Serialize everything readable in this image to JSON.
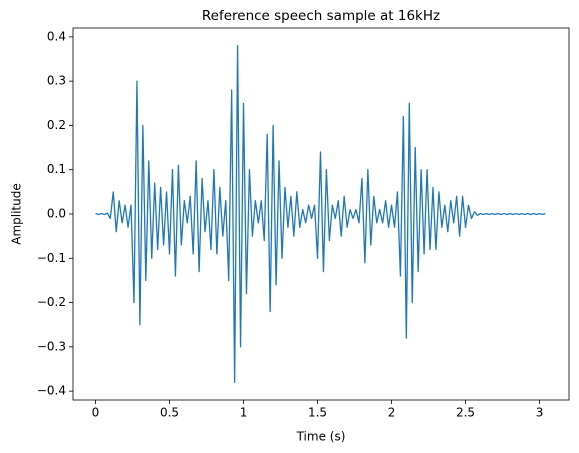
{
  "chart_data": {
    "type": "line",
    "title": "Reference speech sample at 16kHz",
    "xlabel": "Time (s)",
    "ylabel": "Amplitude",
    "color": "#1f77b4",
    "x": [
      0,
      0.02,
      0.04,
      0.06,
      0.08,
      0.1,
      0.12,
      0.14,
      0.16,
      0.18,
      0.2,
      0.22,
      0.24,
      0.26,
      0.28,
      0.3,
      0.32,
      0.34,
      0.36,
      0.38,
      0.4,
      0.42,
      0.44,
      0.46,
      0.48,
      0.5,
      0.52,
      0.54,
      0.56,
      0.58,
      0.6,
      0.62,
      0.64,
      0.66,
      0.68,
      0.7,
      0.72,
      0.74,
      0.76,
      0.78,
      0.8,
      0.82,
      0.84,
      0.86,
      0.88,
      0.9,
      0.92,
      0.94,
      0.96,
      0.98,
      1,
      1.02,
      1.04,
      1.06,
      1.08,
      1.1,
      1.12,
      1.14,
      1.16,
      1.18,
      1.2,
      1.22,
      1.24,
      1.26,
      1.28,
      1.3,
      1.32,
      1.34,
      1.36,
      1.38,
      1.4,
      1.42,
      1.44,
      1.46,
      1.48,
      1.5,
      1.52,
      1.54,
      1.56,
      1.58,
      1.6,
      1.62,
      1.64,
      1.66,
      1.68,
      1.7,
      1.72,
      1.74,
      1.76,
      1.78,
      1.8,
      1.82,
      1.84,
      1.86,
      1.88,
      1.9,
      1.92,
      1.94,
      1.96,
      1.98,
      2,
      2.02,
      2.04,
      2.06,
      2.08,
      2.1,
      2.12,
      2.14,
      2.16,
      2.18,
      2.2,
      2.22,
      2.24,
      2.26,
      2.28,
      2.3,
      2.32,
      2.34,
      2.36,
      2.38,
      2.4,
      2.42,
      2.44,
      2.46,
      2.48,
      2.5,
      2.52,
      2.54,
      2.56,
      2.58,
      2.6,
      2.62,
      2.64,
      2.66,
      2.68,
      2.7,
      2.72,
      2.74,
      2.76,
      2.78,
      2.8,
      2.82,
      2.84,
      2.86,
      2.88,
      2.9,
      2.92,
      2.94,
      2.96,
      2.98,
      3,
      3.02,
      3.04
    ],
    "values": [
      0.001,
      -0.001,
      0.001,
      -0.001,
      0.002,
      -0.01,
      0.05,
      -0.04,
      0.03,
      -0.02,
      0.02,
      -0.03,
      0.02,
      -0.2,
      0.3,
      -0.25,
      0.2,
      -0.15,
      0.12,
      -0.1,
      0.07,
      -0.08,
      0.06,
      -0.07,
      0.05,
      -0.09,
      0.1,
      -0.14,
      0.11,
      -0.07,
      0.03,
      -0.02,
      0.04,
      -0.09,
      0.12,
      -0.13,
      0.08,
      -0.04,
      0.03,
      -0.08,
      0.1,
      -0.09,
      0.06,
      -0.05,
      0.03,
      -0.15,
      0.28,
      -0.38,
      0.38,
      -0.3,
      0.25,
      -0.18,
      0.1,
      -0.05,
      0.03,
      -0.02,
      0.03,
      -0.06,
      0.18,
      -0.22,
      0.2,
      -0.16,
      0.12,
      -0.1,
      0.06,
      -0.03,
      0.04,
      -0.05,
      0.05,
      -0.03,
      0.01,
      -0.02,
      0.02,
      -0.01,
      0.02,
      -0.1,
      0.14,
      -0.13,
      0.1,
      -0.06,
      0.02,
      -0.01,
      0.03,
      -0.05,
      0.04,
      -0.03,
      0.01,
      -0.01,
      0.01,
      -0.02,
      0.08,
      -0.11,
      0.1,
      -0.07,
      0.04,
      -0.02,
      0.01,
      -0.02,
      0.03,
      -0.03,
      0.02,
      -0.03,
      0.05,
      -0.14,
      0.22,
      -0.28,
      0.25,
      -0.2,
      0.15,
      -0.13,
      0.1,
      -0.09,
      0.1,
      -0.08,
      0.06,
      -0.08,
      0.05,
      -0.03,
      0.02,
      -0.04,
      0.03,
      -0.02,
      0.04,
      -0.05,
      0.04,
      -0.03,
      0.02,
      -0.01,
      0.005,
      -0.003,
      0.001,
      -0.001,
      0.001,
      -0.001,
      0.001,
      -0.001,
      0.001,
      -0.001,
      0.001,
      -0.001,
      0.001,
      -0.001,
      0.001,
      -0.001,
      0.001,
      -0.001,
      0.001,
      -0.001,
      0.001,
      -0.001,
      0.001,
      -0.001,
      0.001
    ],
    "xlim": [
      -0.152,
      3.199
    ],
    "ylim": [
      -0.42,
      0.42
    ],
    "xticks": [
      0,
      0.5,
      1,
      1.5,
      2,
      2.5,
      3
    ],
    "yticks": [
      {
        "value": -0.4,
        "label": "−0.4"
      },
      {
        "value": -0.3,
        "label": "−0.3"
      },
      {
        "value": -0.2,
        "label": "−0.2"
      },
      {
        "value": -0.1,
        "label": "−0.1"
      },
      {
        "value": 0,
        "label": "0.0"
      },
      0.1,
      0.2,
      0.3,
      0.4
    ]
  }
}
